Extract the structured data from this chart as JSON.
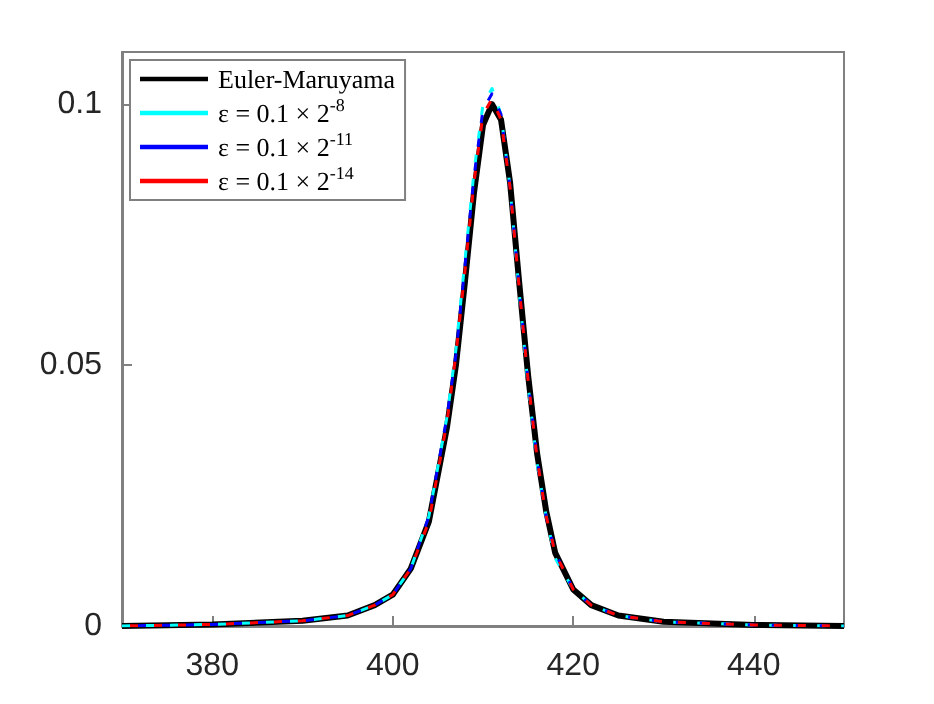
{
  "chart_data": {
    "type": "line",
    "x": [
      370,
      380,
      390,
      395,
      398,
      400,
      402,
      404,
      406,
      407,
      408,
      409,
      410,
      411,
      412,
      413,
      414,
      415,
      416,
      417,
      418,
      420,
      422,
      425,
      430,
      440,
      450
    ],
    "series": [
      {
        "name": "Euler-Maruyama",
        "color": "#000000",
        "line_style": "solid",
        "values": [
          0,
          0.0003,
          0.001,
          0.002,
          0.004,
          0.006,
          0.011,
          0.02,
          0.038,
          0.05,
          0.066,
          0.083,
          0.096,
          0.1,
          0.097,
          0.085,
          0.066,
          0.048,
          0.033,
          0.022,
          0.014,
          0.007,
          0.004,
          0.002,
          0.0008,
          0.0002,
          0
        ]
      },
      {
        "name": "ε = 0.1 × 2$^{-8}$",
        "color": "#00ffff",
        "line_style": "dashed",
        "values": [
          0,
          0.0003,
          0.001,
          0.002,
          0.004,
          0.006,
          0.011,
          0.021,
          0.04,
          0.053,
          0.07,
          0.087,
          0.1,
          0.103,
          0.098,
          0.084,
          0.064,
          0.046,
          0.031,
          0.021,
          0.013,
          0.007,
          0.004,
          0.002,
          0.0008,
          0.0002,
          0
        ]
      },
      {
        "name": "ε = 0.1 × 2$^{-11}$",
        "color": "#0000ff",
        "line_style": "dashed",
        "values": [
          0,
          0.0003,
          0.001,
          0.002,
          0.004,
          0.006,
          0.011,
          0.021,
          0.04,
          0.052,
          0.069,
          0.086,
          0.099,
          0.102,
          0.098,
          0.084,
          0.065,
          0.047,
          0.032,
          0.021,
          0.014,
          0.007,
          0.004,
          0.002,
          0.0008,
          0.0002,
          0
        ]
      },
      {
        "name": "ε = 0.1 × 2$^{-14}$",
        "color": "#ff0000",
        "line_style": "dashed",
        "values": [
          0,
          0.0003,
          0.001,
          0.002,
          0.004,
          0.006,
          0.011,
          0.02,
          0.039,
          0.052,
          0.068,
          0.085,
          0.098,
          0.101,
          0.097,
          0.084,
          0.065,
          0.047,
          0.032,
          0.021,
          0.014,
          0.007,
          0.004,
          0.002,
          0.0008,
          0.0002,
          0
        ]
      }
    ],
    "xlim": [
      370,
      450
    ],
    "xticks": [
      380,
      400,
      420,
      440
    ],
    "ylim": [
      0,
      0.11
    ],
    "yticks": [
      0,
      0.05,
      0.1
    ],
    "grid": false,
    "legend": "top left",
    "marker": "none"
  }
}
